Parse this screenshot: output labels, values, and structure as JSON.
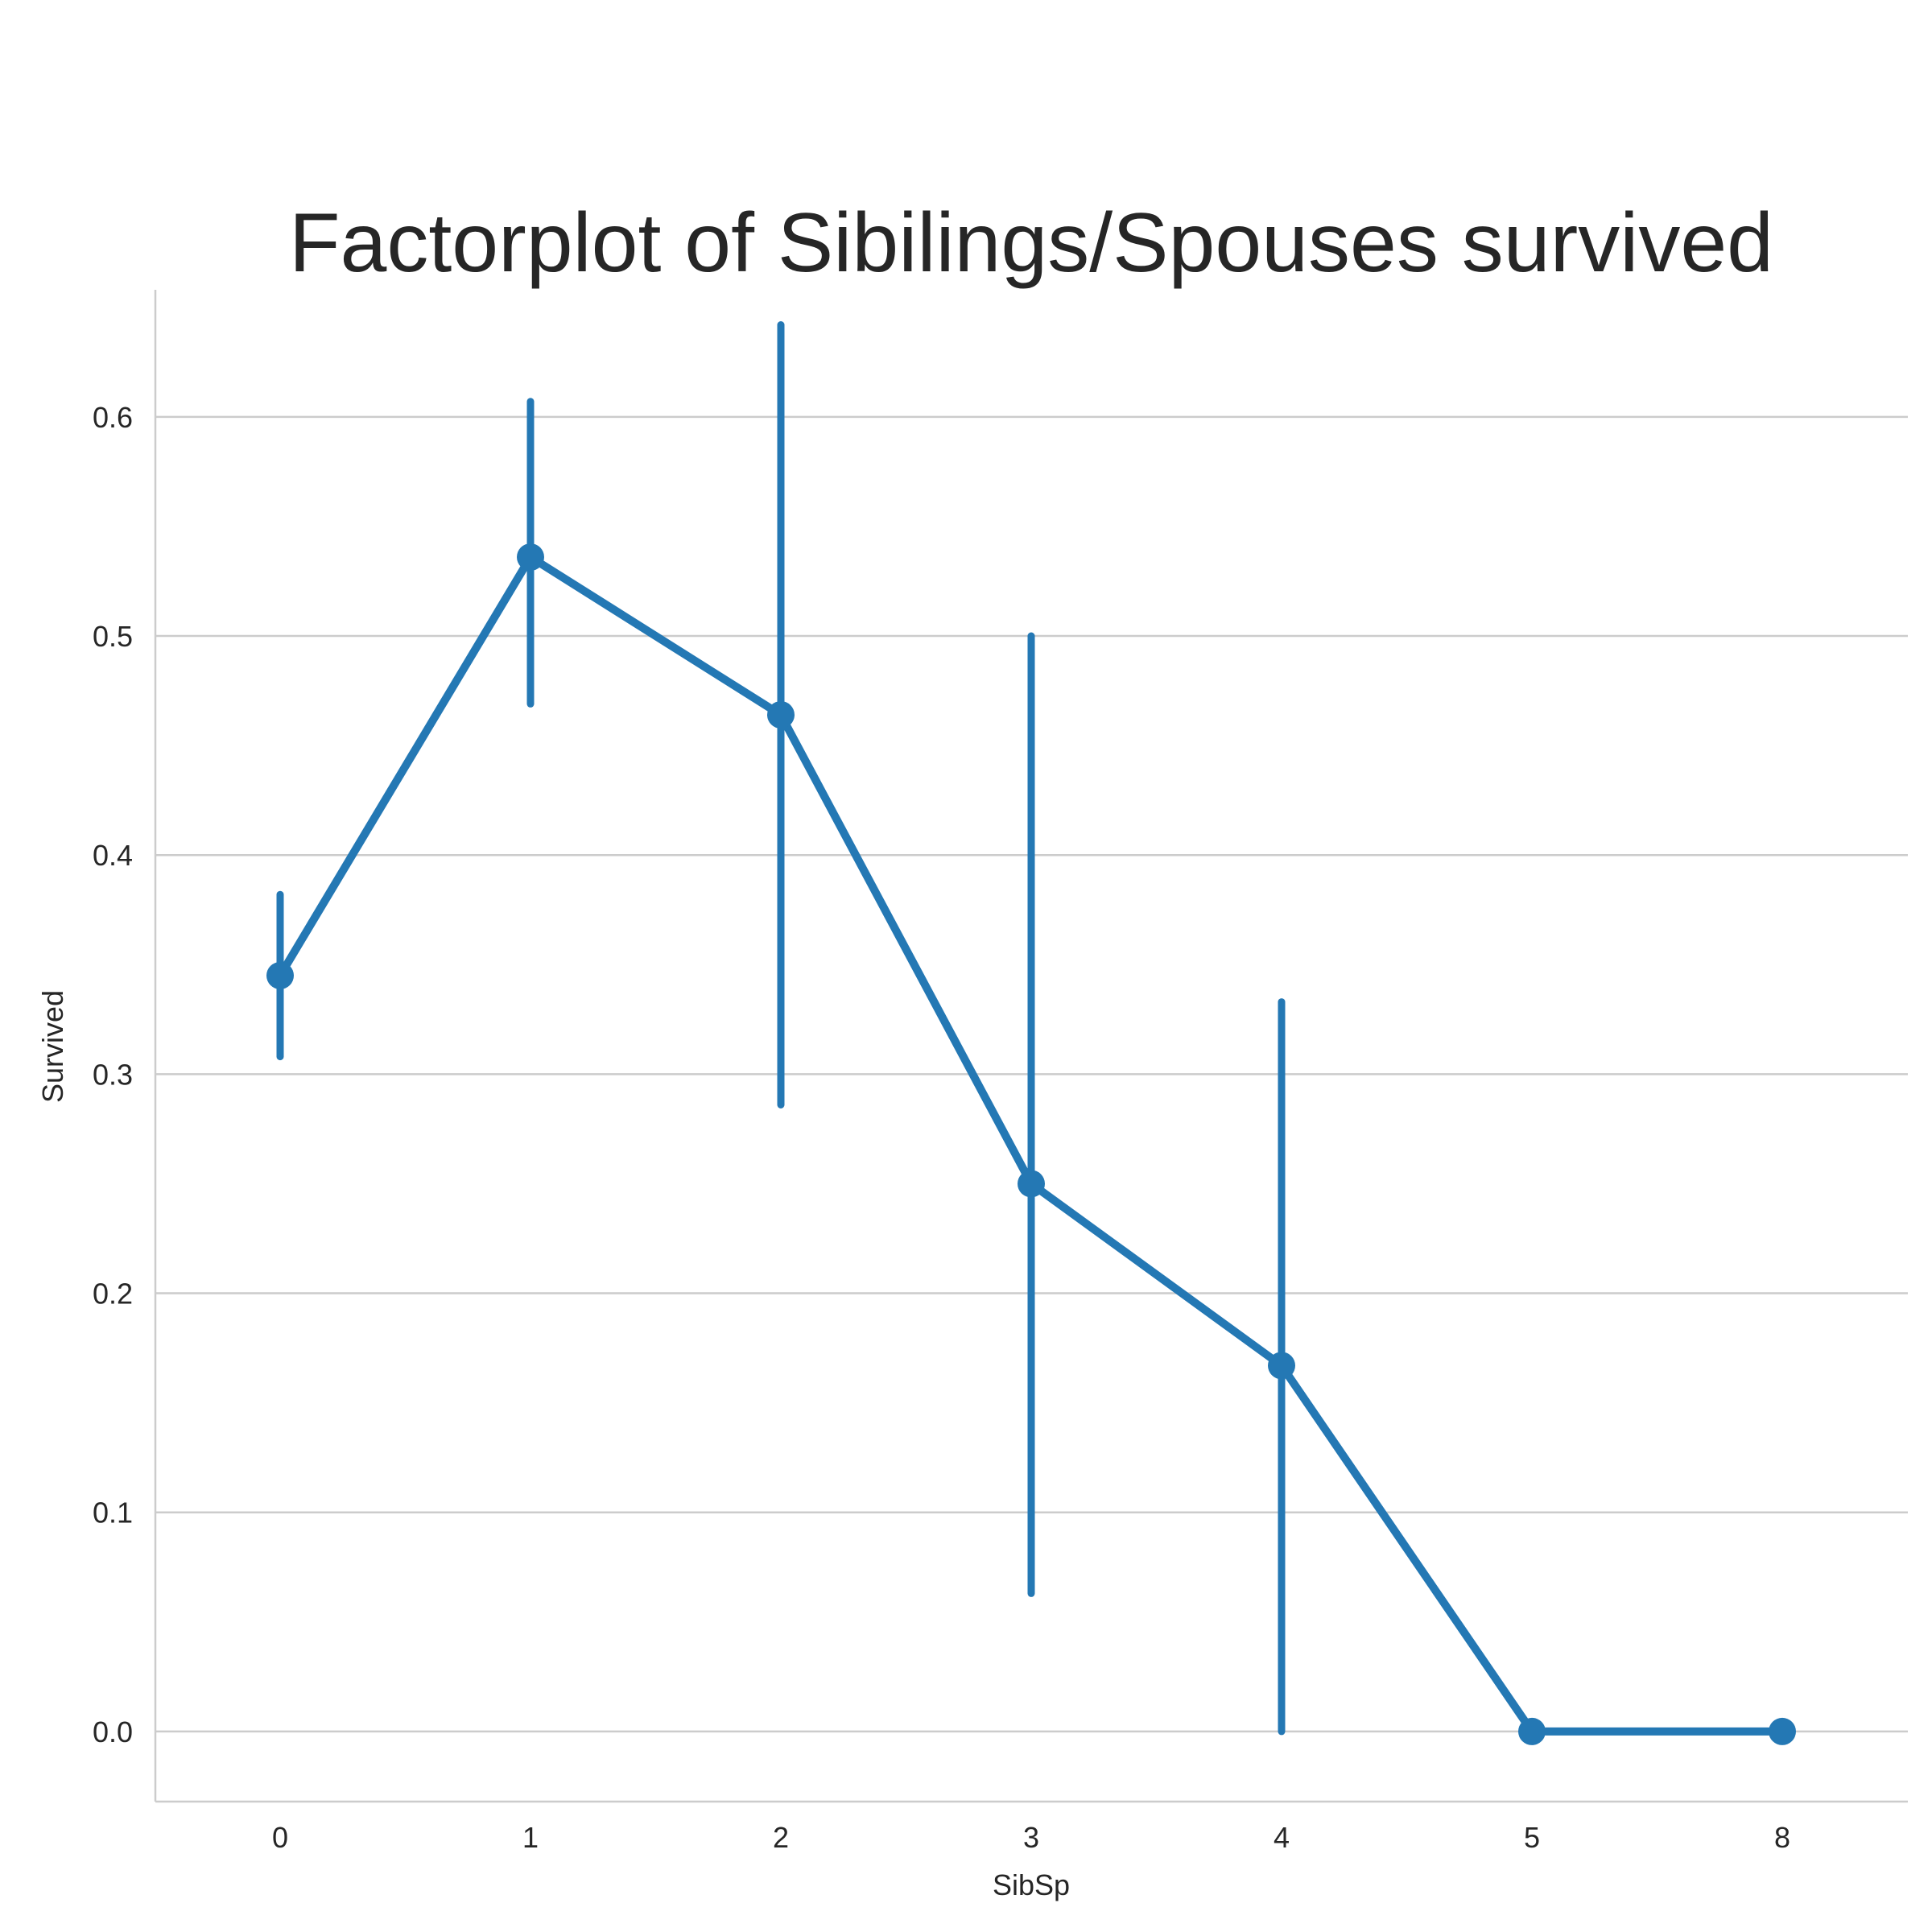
{
  "chart_data": {
    "type": "line",
    "title": "Factorplot of Sibilings/Spouses survived",
    "xlabel": "SibSp",
    "ylabel": "Survived",
    "categories": [
      "0",
      "1",
      "2",
      "3",
      "4",
      "5",
      "8"
    ],
    "series": [
      {
        "values": [
          0.345,
          0.536,
          0.464,
          0.25,
          0.167,
          0.0,
          0.0
        ],
        "ci_low": [
          0.308,
          0.469,
          0.286,
          0.063,
          0.0,
          0.0,
          0.0
        ],
        "ci_high": [
          0.382,
          0.607,
          0.642,
          0.5,
          0.333,
          0.0,
          0.0
        ]
      }
    ],
    "y_ticks": [
      "0.0",
      "0.1",
      "0.2",
      "0.3",
      "0.4",
      "0.5",
      "0.6"
    ],
    "ylim": [
      -0.032,
      0.658
    ],
    "grid": "y-major",
    "color": "#2478b4",
    "gridline_color": "#cccccc"
  }
}
